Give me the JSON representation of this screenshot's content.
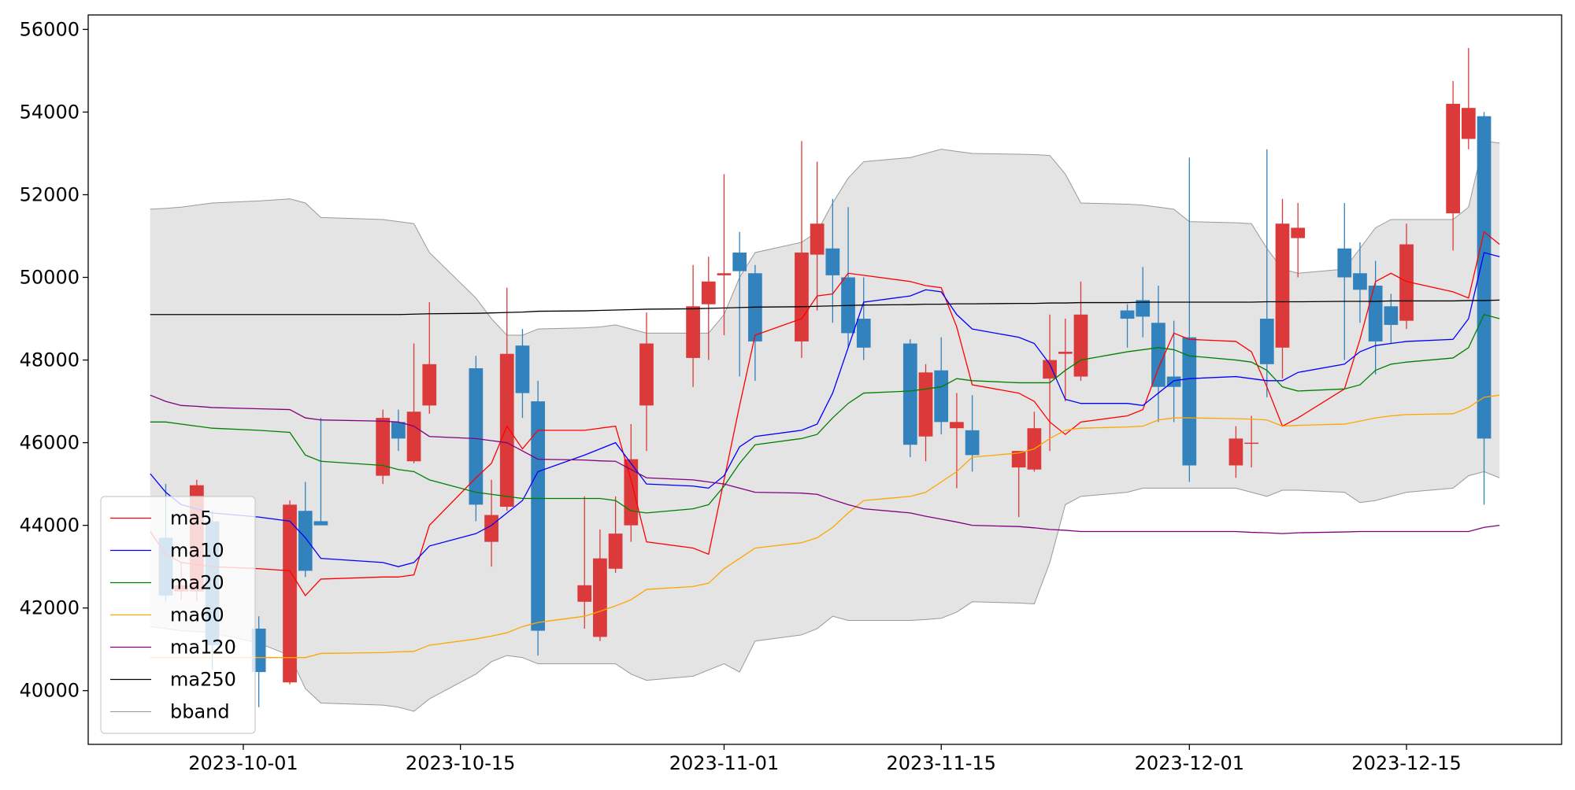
{
  "chart_data": {
    "type": "candlestick",
    "x": [
      "2023-09-25",
      "2023-09-26",
      "2023-09-27",
      "2023-09-28",
      "2023-09-29",
      "2023-10-02",
      "2023-10-04",
      "2023-10-05",
      "2023-10-06",
      "2023-10-10",
      "2023-10-11",
      "2023-10-12",
      "2023-10-13",
      "2023-10-16",
      "2023-10-17",
      "2023-10-18",
      "2023-10-19",
      "2023-10-20",
      "2023-10-23",
      "2023-10-24",
      "2023-10-25",
      "2023-10-26",
      "2023-10-27",
      "2023-10-30",
      "2023-10-31",
      "2023-11-01",
      "2023-11-02",
      "2023-11-03",
      "2023-11-06",
      "2023-11-07",
      "2023-11-08",
      "2023-11-09",
      "2023-11-10",
      "2023-11-13",
      "2023-11-14",
      "2023-11-15",
      "2023-11-16",
      "2023-11-17",
      "2023-11-20",
      "2023-11-21",
      "2023-11-22",
      "2023-11-23",
      "2023-11-24",
      "2023-11-27",
      "2023-11-28",
      "2023-11-29",
      "2023-11-30",
      "2023-12-01",
      "2023-12-04",
      "2023-12-05",
      "2023-12-06",
      "2023-12-07",
      "2023-12-08",
      "2023-12-11",
      "2023-12-12",
      "2023-12-13",
      "2023-12-14",
      "2023-12-15",
      "2023-12-18",
      "2023-12-19",
      "2023-12-20",
      "2023-12-21"
    ],
    "open": [
      null,
      43700,
      42400,
      42400,
      44100,
      41500,
      40200,
      44350,
      44100,
      45200,
      46500,
      45550,
      46900,
      47800,
      43600,
      44450,
      48350,
      47000,
      42150,
      41300,
      42950,
      44000,
      46900,
      48050,
      49350,
      50050,
      50600,
      50100,
      48450,
      50550,
      50700,
      50000,
      49000,
      48400,
      46150,
      47750,
      46350,
      46300,
      45400,
      45350,
      47550,
      48150,
      47600,
      49200,
      49450,
      48900,
      47600,
      48550,
      45450,
      45980,
      49000,
      48300,
      50950,
      50700,
      50100,
      49800,
      49300,
      48950,
      51550,
      53350,
      53900,
      null
    ],
    "high": [
      null,
      45000,
      43100,
      45100,
      44350,
      41800,
      44600,
      45050,
      46600,
      46800,
      46800,
      48400,
      49400,
      48100,
      45100,
      49750,
      48750,
      47500,
      44700,
      43900,
      44700,
      46450,
      49150,
      50300,
      50500,
      52500,
      51100,
      50300,
      53300,
      52800,
      51900,
      51700,
      50000,
      48500,
      47900,
      48550,
      47200,
      47150,
      45800,
      46750,
      49100,
      49000,
      49900,
      49350,
      50250,
      49800,
      48950,
      52900,
      46400,
      46650,
      53100,
      51900,
      51800,
      51800,
      50850,
      50400,
      49600,
      51300,
      54750,
      55550,
      54000,
      null
    ],
    "low": [
      null,
      42150,
      42200,
      42150,
      40500,
      39600,
      40150,
      42750,
      44000,
      45000,
      45800,
      45500,
      46700,
      44100,
      43000,
      44350,
      46600,
      40850,
      41500,
      41200,
      42850,
      43600,
      45800,
      47350,
      48000,
      48600,
      47600,
      47500,
      48050,
      49200,
      48900,
      48300,
      48000,
      45650,
      45550,
      46200,
      44900,
      45300,
      44200,
      45300,
      45800,
      47000,
      47500,
      48300,
      48550,
      46500,
      46500,
      45050,
      45150,
      45400,
      47100,
      47550,
      50000,
      48000,
      48900,
      47650,
      48400,
      48750,
      50650,
      53100,
      44500,
      null
    ],
    "close": [
      null,
      42300,
      42550,
      44970,
      41100,
      40450,
      44500,
      42900,
      44000,
      46600,
      46100,
      46750,
      47900,
      44500,
      44250,
      48150,
      47200,
      41450,
      42550,
      43200,
      43800,
      45600,
      48400,
      49300,
      49900,
      50100,
      50150,
      48450,
      50600,
      51300,
      50050,
      48650,
      48300,
      45950,
      47700,
      46500,
      46500,
      45700,
      45800,
      46350,
      48000,
      48200,
      49100,
      49000,
      49050,
      47350,
      47350,
      45450,
      46100,
      46000,
      47900,
      51300,
      51200,
      50000,
      49700,
      48450,
      48850,
      50800,
      54200,
      54100,
      46100,
      null
    ],
    "up_color": "#dc3a3a",
    "down_color": "#3182bd",
    "series": [
      {
        "name": "ma5",
        "color": "#ff0000",
        "values": [
          43850,
          43300,
          43100,
          43050,
          43000,
          42950,
          42900,
          42300,
          42700,
          42750,
          42750,
          42800,
          44000,
          45150,
          45500,
          46400,
          45850,
          46300,
          46300,
          46350,
          46400,
          45100,
          43600,
          43450,
          43300,
          45100,
          46900,
          48600,
          49000,
          49550,
          49600,
          50100,
          50050,
          49900,
          49800,
          49750,
          48800,
          47400,
          47200,
          47000,
          46500,
          46200,
          46500,
          46650,
          46800,
          47800,
          48650,
          48500,
          48450,
          48200,
          47350,
          46400,
          46600,
          47300,
          48500,
          49900,
          50100,
          49900,
          49650,
          49500,
          51100,
          50800
        ]
      },
      {
        "name": "ma10",
        "color": "#0000ff",
        "values": [
          45250,
          44800,
          44500,
          44400,
          44300,
          44200,
          44100,
          43700,
          43200,
          43100,
          43000,
          43100,
          43500,
          43800,
          44000,
          44300,
          44600,
          45300,
          45700,
          45850,
          46000,
          45500,
          45000,
          44950,
          44900,
          45200,
          45900,
          46150,
          46300,
          46450,
          47200,
          48300,
          49400,
          49550,
          49700,
          49650,
          49100,
          48750,
          48550,
          48400,
          47900,
          47050,
          46950,
          46950,
          46900,
          47200,
          47500,
          47550,
          47600,
          47550,
          47500,
          47500,
          47700,
          47900,
          48200,
          48350,
          48400,
          48450,
          48500,
          49000,
          50600,
          50500
        ]
      },
      {
        "name": "ma20",
        "color": "#008000",
        "values": [
          46500,
          46500,
          46450,
          46400,
          46350,
          46300,
          46250,
          45700,
          45550,
          45450,
          45350,
          45300,
          45100,
          44800,
          44750,
          44700,
          44650,
          44650,
          44650,
          44650,
          44600,
          44350,
          44300,
          44400,
          44500,
          44950,
          45500,
          45950,
          46100,
          46200,
          46600,
          46950,
          47200,
          47250,
          47300,
          47350,
          47550,
          47500,
          47450,
          47450,
          47450,
          47750,
          48000,
          48200,
          48250,
          48300,
          48250,
          48100,
          48000,
          47950,
          47750,
          47350,
          47250,
          47300,
          47400,
          47750,
          47900,
          47950,
          48050,
          48300,
          49100,
          49000
        ]
      },
      {
        "name": "ma60",
        "color": "#ffa500",
        "values": [
          40800,
          40800,
          40800,
          40800,
          40800,
          40800,
          40800,
          40800,
          40900,
          40920,
          40940,
          40950,
          41100,
          41250,
          41320,
          41400,
          41550,
          41650,
          41800,
          41920,
          42050,
          42200,
          42450,
          42520,
          42600,
          42950,
          43200,
          43450,
          43580,
          43700,
          43950,
          44300,
          44600,
          44700,
          44800,
          45050,
          45300,
          45650,
          45750,
          45850,
          46100,
          46300,
          46350,
          46380,
          46400,
          46550,
          46600,
          46600,
          46580,
          46570,
          46550,
          46400,
          46420,
          46450,
          46520,
          46600,
          46650,
          46680,
          46700,
          46850,
          47100,
          47150
        ]
      },
      {
        "name": "ma120",
        "color": "#800080",
        "values": [
          47150,
          47000,
          46900,
          46880,
          46850,
          46820,
          46800,
          46600,
          46550,
          46520,
          46500,
          46400,
          46150,
          46100,
          46050,
          46000,
          45800,
          45600,
          45580,
          45560,
          45550,
          45350,
          45150,
          45100,
          45050,
          45000,
          44900,
          44800,
          44780,
          44750,
          44620,
          44500,
          44400,
          44300,
          44220,
          44150,
          44080,
          44000,
          43970,
          43940,
          43900,
          43880,
          43850,
          43850,
          43850,
          43850,
          43850,
          43850,
          43850,
          43830,
          43820,
          43800,
          43820,
          43840,
          43850,
          43850,
          43850,
          43850,
          43850,
          43850,
          43950,
          44000
        ]
      },
      {
        "name": "ma250",
        "color": "#000000",
        "values": [
          49100,
          49100,
          49100,
          49100,
          49100,
          49100,
          49100,
          49100,
          49100,
          49100,
          49100,
          49110,
          49120,
          49130,
          49140,
          49150,
          49160,
          49180,
          49190,
          49200,
          49210,
          49220,
          49230,
          49240,
          49250,
          49260,
          49270,
          49280,
          49290,
          49300,
          49310,
          49320,
          49330,
          49340,
          49350,
          49350,
          49360,
          49360,
          49370,
          49370,
          49380,
          49380,
          49390,
          49390,
          49400,
          49400,
          49400,
          49400,
          49400,
          49400,
          49410,
          49410,
          49410,
          49420,
          49420,
          49420,
          49430,
          49430,
          49430,
          49440,
          49440,
          49450
        ]
      }
    ],
    "band": {
      "name": "bband",
      "color": "#999999",
      "fill": "#e4e4e4",
      "upper": [
        51650,
        51670,
        51700,
        51750,
        51800,
        51850,
        51900,
        51800,
        51450,
        51400,
        51350,
        51300,
        50600,
        49500,
        49000,
        48600,
        48600,
        48750,
        48780,
        48800,
        48850,
        48750,
        48650,
        48650,
        48650,
        49100,
        50000,
        50600,
        50850,
        51100,
        51800,
        52400,
        52800,
        52900,
        53000,
        53100,
        53050,
        53000,
        52980,
        52970,
        52950,
        52500,
        51800,
        51770,
        51750,
        51700,
        51650,
        51350,
        51320,
        51300,
        50700,
        50200,
        50100,
        50200,
        50700,
        51200,
        51400,
        51400,
        51400,
        51700,
        53300,
        53250
      ],
      "lower": [
        41550,
        41500,
        41450,
        41430,
        41400,
        41150,
        40850,
        40050,
        39700,
        39650,
        39600,
        39500,
        39800,
        40400,
        40700,
        40850,
        40800,
        40650,
        40650,
        40650,
        40650,
        40400,
        40250,
        40350,
        40500,
        40650,
        40450,
        41200,
        41350,
        41500,
        41800,
        41700,
        41700,
        41700,
        41720,
        41750,
        41900,
        42150,
        42120,
        42100,
        43100,
        44500,
        44700,
        44800,
        44900,
        44900,
        44900,
        44900,
        44900,
        44800,
        44700,
        44850,
        44850,
        44800,
        44550,
        44600,
        44700,
        44800,
        44900,
        45200,
        45300,
        45150
      ]
    },
    "xlim": [
      "2023-09-21",
      "2023-12-25"
    ],
    "xticks": [
      "2023-10-01",
      "2023-10-15",
      "2023-11-01",
      "2023-11-15",
      "2023-12-01",
      "2023-12-15"
    ],
    "ylim": [
      38700,
      56350
    ],
    "yticks": [
      40000,
      42000,
      44000,
      46000,
      48000,
      50000,
      52000,
      54000,
      56000
    ],
    "legend": "lower left"
  }
}
